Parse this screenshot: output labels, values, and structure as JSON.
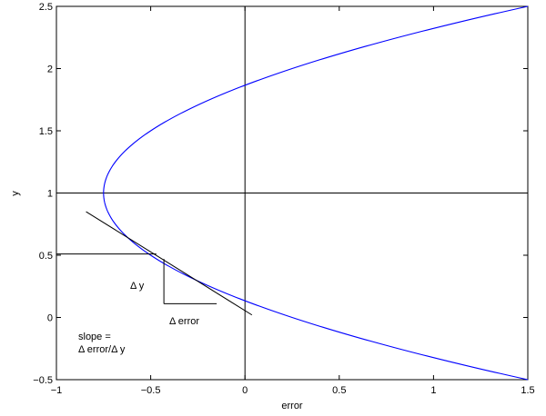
{
  "chart_data": {
    "type": "line",
    "xlabel": "error",
    "ylabel": "y",
    "xlim": [
      -1,
      1.5
    ],
    "ylim": [
      -0.5,
      2.5
    ],
    "xticks": [
      "−1",
      "−0.5",
      "0",
      "0.5",
      "1",
      "1.5"
    ],
    "yticks": [
      "−0.5",
      "0",
      "0.5",
      "1",
      "1.5",
      "2",
      "2.5"
    ],
    "xtick_values": [
      -1,
      -0.5,
      0,
      0.5,
      1,
      1.5
    ],
    "ytick_values": [
      -0.5,
      0,
      0.5,
      1,
      1.5,
      2,
      2.5
    ],
    "curve": {
      "relation": "error = (y - 1)^2 - 0.75",
      "y_range": [
        -0.5,
        2.5
      ],
      "color": "#0000ff"
    },
    "reference_lines": {
      "vertical_x": 0,
      "horizontal_y": 1,
      "color": "#000000"
    },
    "tangent": {
      "point": {
        "x": -0.44,
        "y": 0.47
      },
      "slope_derror_dy": -1.06,
      "y_range": [
        0.02,
        0.85
      ]
    },
    "construction": {
      "horizontal_y": 0.51,
      "horizontal_x_range": [
        -1,
        -0.47
      ],
      "step_x": -0.43,
      "step_y_range": [
        0.11,
        0.47
      ],
      "step_x_end": -0.15
    },
    "annotations": {
      "delta_y": "Δ y",
      "delta_error": "Δ error",
      "slope_line1": "slope =",
      "slope_line2": "Δ error/Δ y"
    },
    "grid": false,
    "legend": "none"
  }
}
